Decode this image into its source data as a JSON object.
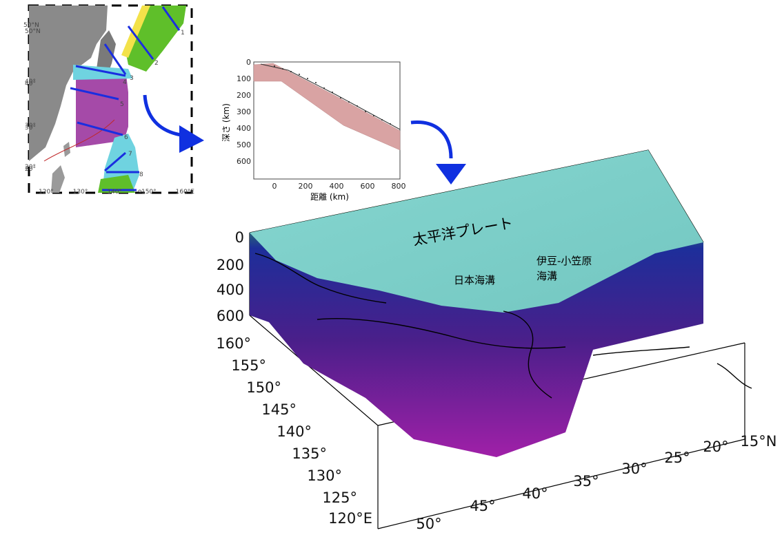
{
  "index_map": {
    "lat_labels": [
      "50°N",
      "40°",
      "30°",
      "20°"
    ],
    "lon_labels": [
      "120°",
      "130°",
      "140°",
      "150°",
      "160°E"
    ],
    "section_numbers": [
      "1",
      "2",
      "3",
      "4",
      "5",
      "6",
      "7",
      "8",
      "9"
    ]
  },
  "profile": {
    "xlabel": "距離 (km)",
    "ylabel": "深さ (km)",
    "x_ticks": [
      "0",
      "200",
      "400",
      "600",
      "800"
    ],
    "y_ticks": [
      "0",
      "100",
      "200",
      "300",
      "400",
      "500",
      "600"
    ]
  },
  "block3d": {
    "labels": {
      "pacific_plate": "太平洋プレート",
      "japan_trench": "日本海溝",
      "izu_bonin_1": "伊豆-小笠原",
      "izu_bonin_2": "海溝"
    },
    "depth_ticks": [
      "0",
      "200",
      "400",
      "600"
    ],
    "lon_ticks": [
      "160°",
      "155°",
      "150°",
      "145°",
      "140°",
      "135°",
      "130°",
      "125°",
      "120°E"
    ],
    "lat_ticks": [
      "50°",
      "45°",
      "40°",
      "35°",
      "30°",
      "25°",
      "20°",
      "15°N"
    ]
  },
  "colors": {
    "arrow": "#1030e0",
    "section_line": "#1a2ee0",
    "surface_top": "#7ecfc9",
    "slab_green": "#3fbf3a",
    "slab_blue": "#1d2e9a",
    "slab_purple": "#8c1f9a"
  }
}
